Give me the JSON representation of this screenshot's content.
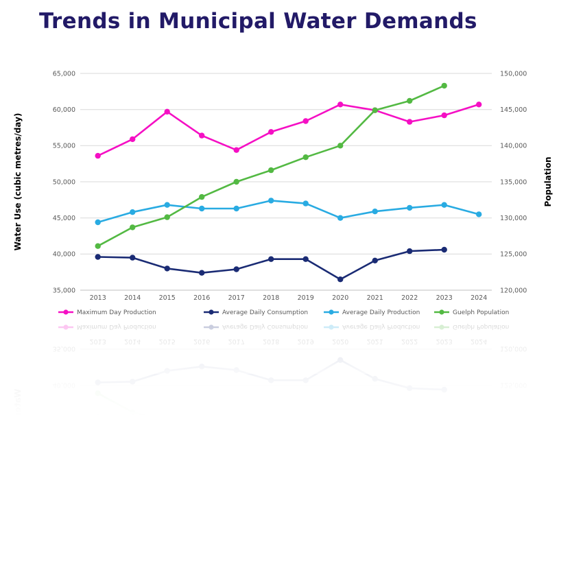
{
  "page": {
    "title": "Trends in Municipal Water Demands",
    "title_color": "#221a67",
    "background": "#ffffff"
  },
  "chart_data": {
    "type": "line",
    "x": [
      "2013",
      "2014",
      "2015",
      "2016",
      "2017",
      "2018",
      "2019",
      "2020",
      "2021",
      "2022",
      "2023",
      "2024"
    ],
    "left_axis": {
      "label": "Water Use (cubic metres/day)",
      "min": 35000,
      "max": 65000,
      "step": 5000,
      "tick_labels": [
        "35,000",
        "40,000",
        "45,000",
        "50,000",
        "55,000",
        "60,000",
        "65,000"
      ]
    },
    "right_axis": {
      "label": "Population",
      "min": 120000,
      "max": 150000,
      "step": 5000,
      "tick_labels": [
        "120,000",
        "125,000",
        "130,000",
        "135,000",
        "140,000",
        "145,000",
        "150,000"
      ]
    },
    "series": [
      {
        "name": "Maximum Day Production",
        "color": "#f50fc4",
        "axis": "left",
        "values": [
          53600,
          55900,
          59700,
          56400,
          54400,
          56900,
          58400,
          60700,
          59900,
          58300,
          59200,
          60700
        ]
      },
      {
        "name": "Average Daily Consumption",
        "color": "#1a2b74",
        "axis": "left",
        "values": [
          39600,
          39500,
          38000,
          37400,
          37900,
          39300,
          39300,
          36500,
          39100,
          40400,
          40600,
          null
        ]
      },
      {
        "name": "Average Daily Production",
        "color": "#29abe2",
        "axis": "left",
        "values": [
          44400,
          45800,
          46800,
          46300,
          46300,
          47400,
          47000,
          45000,
          45900,
          46400,
          46800,
          45500
        ]
      },
      {
        "name": "Guelph Population",
        "color": "#53b943",
        "axis": "right",
        "values": [
          126100,
          128700,
          130100,
          132900,
          135000,
          136600,
          138400,
          140000,
          144900,
          146200,
          148300,
          null
        ]
      }
    ],
    "grid": true,
    "grid_color": "#d9d9d9",
    "axis_line_color": "#bfbfbf",
    "axis_text_color": "#595959",
    "legend_position": "bottom"
  }
}
